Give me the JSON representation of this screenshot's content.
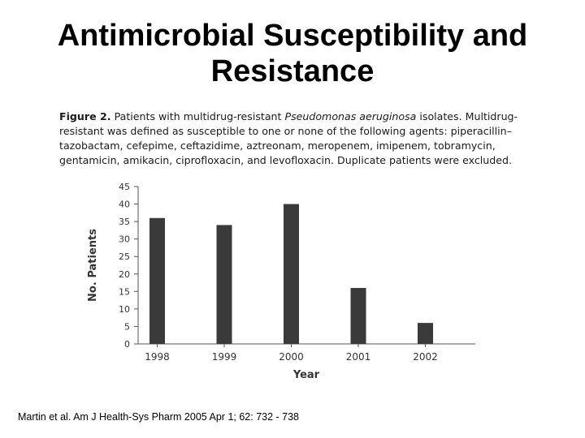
{
  "slide": {
    "title": "Antimicrobial Susceptibility and Resistance",
    "citation": "Martin et al.  Am J Health-Sys Pharm 2005 Apr 1; 62: 732 - 738"
  },
  "figure": {
    "label": "Figure 2.",
    "caption_pre": " Patients with multidrug-resistant ",
    "organism": "Pseudomonas aeruginosa",
    "caption_post": " isolates. Multidrug-resistant was defined as susceptible to one or none of the following agents: piperacillin–tazobactam, cefepime, ceftazidime, aztreonam, meropenem, imipenem, tobramycin, gentamicin, amikacin, ciprofloxacin, and levofloxacin. Duplicate patients were excluded."
  },
  "chart_data": {
    "type": "bar",
    "categories": [
      "1998",
      "1999",
      "2000",
      "2001",
      "2002"
    ],
    "values": [
      36,
      34,
      40,
      16,
      6
    ],
    "xlabel": "Year",
    "ylabel": "No. Patients",
    "ylim": [
      0,
      45
    ],
    "yticks": [
      0,
      5,
      10,
      15,
      20,
      25,
      30,
      35,
      40,
      45
    ],
    "grid": false,
    "legend": "none",
    "bar_color": "#3a3a3a",
    "axis_color": "#555555"
  }
}
